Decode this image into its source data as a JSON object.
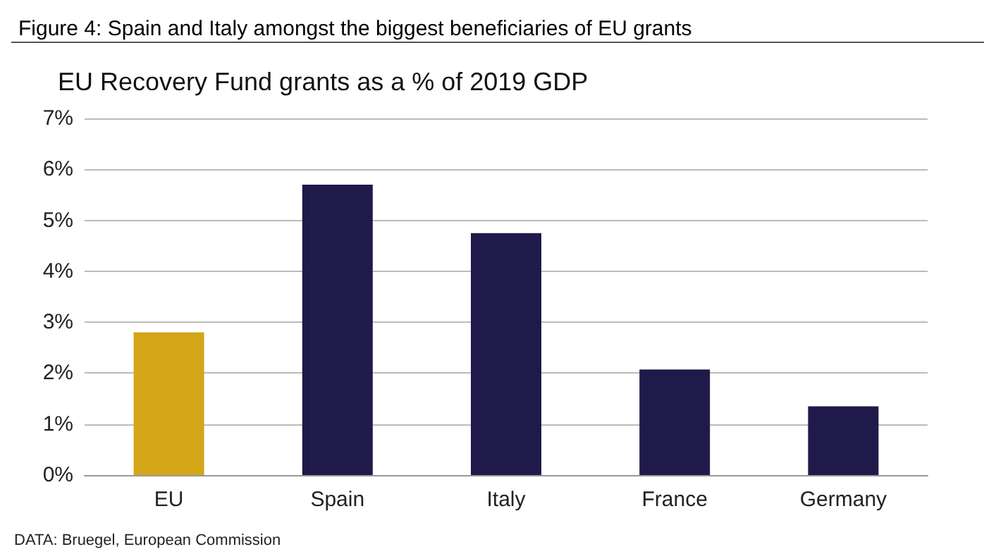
{
  "chart_data": {
    "type": "bar",
    "title": "Figure 4: Spain and Italy amongst the biggest beneficiaries of EU grants",
    "subtitle": "EU Recovery Fund grants as a % of 2019 GDP",
    "categories": [
      "EU",
      "Spain",
      "Italy",
      "France",
      "Germany"
    ],
    "values": [
      2.8,
      5.7,
      4.75,
      2.07,
      1.35
    ],
    "colors": [
      "#d4a617",
      "#1f1a4a",
      "#1f1a4a",
      "#1f1a4a",
      "#1f1a4a"
    ],
    "ylim": [
      0,
      7
    ],
    "yticks": [
      {
        "value": 0,
        "label": "0%"
      },
      {
        "value": 1,
        "label": "1%"
      },
      {
        "value": 2,
        "label": "2%"
      },
      {
        "value": 3,
        "label": "3%"
      },
      {
        "value": 4,
        "label": "4%"
      },
      {
        "value": 5,
        "label": "5%"
      },
      {
        "value": 6,
        "label": "6%"
      },
      {
        "value": 7,
        "label": "7%"
      }
    ],
    "grid": "y",
    "annotations": [
      "DATA: Bruegel, European Commission"
    ]
  }
}
